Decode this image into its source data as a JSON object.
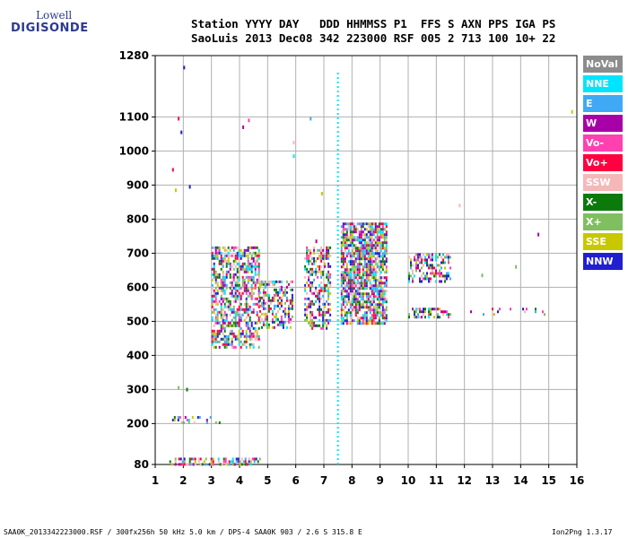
{
  "logo": {
    "line1": "Lowell",
    "line2": "DIGISONDE"
  },
  "header": {
    "line1": "Station YYYY DAY   DDD HHMMSS P1  FFS S AXN PPS IGA PS",
    "line2": "SaoLuis 2013 Dec08 342 223000 RSF 005 2 713 100 10+ 22"
  },
  "footer": {
    "left": "SAA0K_2013342223000.RSF / 300fx256h 50 kHz 5.0 km / DPS-4 SAA0K 903 / 2.6 S 315.8 E",
    "right": "Ion2Png 1.3.17"
  },
  "legend": [
    {
      "label": "NoVal",
      "color": "#8c8c8c"
    },
    {
      "label": "NNE",
      "color": "#00e5ff"
    },
    {
      "label": "E",
      "color": "#3fa9f5"
    },
    {
      "label": "W",
      "color": "#a800a8"
    },
    {
      "label": "Vo-",
      "color": "#ff40b0"
    },
    {
      "label": "Vo+",
      "color": "#ff0040"
    },
    {
      "label": "SSW",
      "color": "#f5b8b8"
    },
    {
      "label": "X-",
      "color": "#0b7a0b"
    },
    {
      "label": "X+",
      "color": "#7fbf5f"
    },
    {
      "label": "SSE",
      "color": "#c8c800"
    },
    {
      "label": "NNW",
      "color": "#2020d0"
    }
  ],
  "chart_data": {
    "type": "scatter",
    "xlabel": "",
    "ylabel": "",
    "xlim": [
      1,
      16
    ],
    "ylim": [
      80,
      1280
    ],
    "x_ticks": [
      "1",
      "2",
      "3",
      "4",
      "5",
      "6",
      "7",
      "8",
      "9",
      "10",
      "11",
      "12",
      "13",
      "14",
      "15",
      "16"
    ],
    "y_ticks": [
      "80",
      "200",
      "300",
      "400",
      "500",
      "600",
      "700",
      "800",
      "900",
      "1000",
      "1100",
      "1280"
    ],
    "y_tick_values": [
      80,
      200,
      300,
      400,
      500,
      600,
      700,
      800,
      900,
      1000,
      1100,
      1280
    ],
    "grid": true,
    "clusters": [
      {
        "x": [
          1.5,
          4.7
        ],
        "y": [
          80,
          100
        ],
        "density": 0.55
      },
      {
        "x": [
          1.6,
          3.3
        ],
        "y": [
          200,
          222
        ],
        "density": 0.3
      },
      {
        "x": [
          3.0,
          4.7
        ],
        "y": [
          420,
          720
        ],
        "density": 0.55
      },
      {
        "x": [
          4.7,
          5.9
        ],
        "y": [
          480,
          620
        ],
        "density": 0.5
      },
      {
        "x": [
          6.3,
          7.2
        ],
        "y": [
          480,
          720
        ],
        "density": 0.5
      },
      {
        "x": [
          7.6,
          9.2
        ],
        "y": [
          490,
          790
        ],
        "density": 0.75
      },
      {
        "x": [
          10.0,
          11.5
        ],
        "y": [
          620,
          700
        ],
        "density": 0.5
      },
      {
        "x": [
          10.0,
          11.5
        ],
        "y": [
          515,
          540
        ],
        "density": 0.4
      },
      {
        "x": [
          11.5,
          15.0
        ],
        "y": [
          520,
          540
        ],
        "density": 0.06
      }
    ],
    "vertical_line": {
      "x": 7.5,
      "y": [
        80,
        1230
      ],
      "color": "#00e5ff"
    },
    "sparse_points": [
      {
        "x": 1.8,
        "y": 1100
      },
      {
        "x": 1.9,
        "y": 1060
      },
      {
        "x": 1.6,
        "y": 950
      },
      {
        "x": 2.2,
        "y": 900
      },
      {
        "x": 1.7,
        "y": 890
      },
      {
        "x": 4.1,
        "y": 1075
      },
      {
        "x": 4.3,
        "y": 1095
      },
      {
        "x": 5.9,
        "y": 1030
      },
      {
        "x": 5.9,
        "y": 990
      },
      {
        "x": 6.5,
        "y": 1100
      },
      {
        "x": 15.8,
        "y": 1120
      },
      {
        "x": 2.0,
        "y": 1250
      },
      {
        "x": 2.1,
        "y": 305
      },
      {
        "x": 1.8,
        "y": 310
      },
      {
        "x": 11.8,
        "y": 845
      },
      {
        "x": 14.6,
        "y": 760
      },
      {
        "x": 13.8,
        "y": 665
      },
      {
        "x": 12.6,
        "y": 640
      },
      {
        "x": 6.9,
        "y": 880
      },
      {
        "x": 6.7,
        "y": 740
      }
    ]
  }
}
